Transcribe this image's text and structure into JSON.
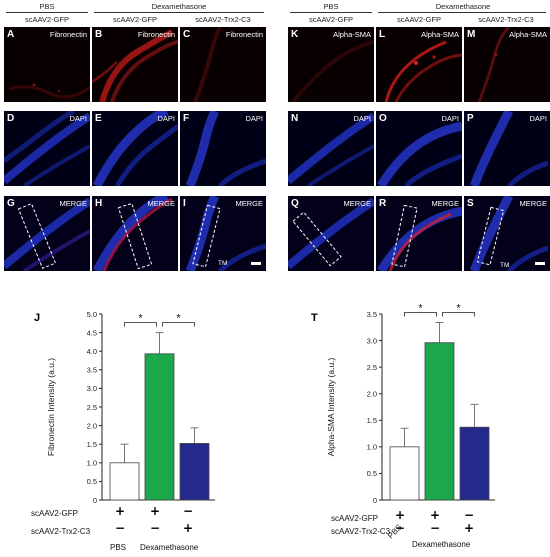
{
  "left_figure": {
    "header_pbs": "PBS",
    "header_dex": "Dexamethasone",
    "col_labels": [
      "scAAV2-GFP",
      "scAAV2-GFP",
      "scAAV2-Trx2-C3"
    ],
    "rows": [
      {
        "letters": [
          "A",
          "B",
          "C"
        ],
        "stain": "Fibronectin"
      },
      {
        "letters": [
          "D",
          "E",
          "F"
        ],
        "stain": "DAPI"
      },
      {
        "letters": [
          "G",
          "H",
          "I"
        ],
        "stain": "MERGE"
      }
    ],
    "tm_label": "TM"
  },
  "right_figure": {
    "header_pbs": "PBS",
    "header_dex": "Dexamethasone",
    "col_labels": [
      "scAAV2-GFP",
      "scAAV2-GFP",
      "scAAV2-Trx2-C3"
    ],
    "rows": [
      {
        "letters": [
          "K",
          "L",
          "M"
        ],
        "stain": "Alpha-SMA"
      },
      {
        "letters": [
          "N",
          "O",
          "P"
        ],
        "stain": "DAPI"
      },
      {
        "letters": [
          "Q",
          "R",
          "S"
        ],
        "stain": "MERGE"
      }
    ],
    "tm_label": "TM"
  },
  "chart_data": [
    {
      "panel_letter": "J",
      "type": "bar",
      "ylabel": "Fibronectin Intensity (a.u.)",
      "ylim": [
        0,
        5.0
      ],
      "yticks": [
        "0",
        "0.5",
        "1.0",
        "1.5",
        "2.0",
        "2.5",
        "3.0",
        "3.5",
        "4.0",
        "4.5",
        "5.0"
      ],
      "categories": [
        "PBS + scAAV2-GFP",
        "Dexamethasone + scAAV2-GFP",
        "Dexamethasone + scAAV2-Trx2-C3"
      ],
      "values": [
        1.0,
        3.93,
        1.52
      ],
      "errors": [
        0.5,
        0.57,
        0.42
      ],
      "colors": [
        "#ffffff",
        "#1aa84a",
        "#232a8c"
      ],
      "significance": [
        "*",
        "*"
      ],
      "row_labels": [
        "scAAV2-GFP",
        "scAAV2-Trx2-C3"
      ],
      "signs_gfp": [
        "+",
        "+",
        "−"
      ],
      "signs_trx": [
        "−",
        "−",
        "+"
      ],
      "group_pbs": "PBS",
      "group_dex": "Dexamethasone"
    },
    {
      "panel_letter": "T",
      "type": "bar",
      "ylabel": "Alpha-SMA Intensity (a.u.)",
      "ylim": [
        0,
        3.5
      ],
      "yticks": [
        "0",
        "0.5",
        "1.0",
        "1.5",
        "2.0",
        "2.5",
        "3.0",
        "3.5"
      ],
      "categories": [
        "PBS + scAAV2-GFP",
        "Dexamethasone + scAAV2-GFP",
        "Dexamethasone + scAAV2-Trx2-C3"
      ],
      "values": [
        1.0,
        2.96,
        1.37
      ],
      "errors": [
        0.35,
        0.38,
        0.43
      ],
      "colors": [
        "#ffffff",
        "#1aa84a",
        "#232a8c"
      ],
      "significance": [
        "*",
        "*"
      ],
      "row_labels": [
        "scAAV2-GFP",
        "scAAV2-Trx2-C3"
      ],
      "signs_gfp": [
        "+",
        "+",
        "−"
      ],
      "signs_trx": [
        "−",
        "−",
        "+"
      ],
      "group_pbs": "PBS",
      "group_dex": "Dexamethasone"
    }
  ]
}
